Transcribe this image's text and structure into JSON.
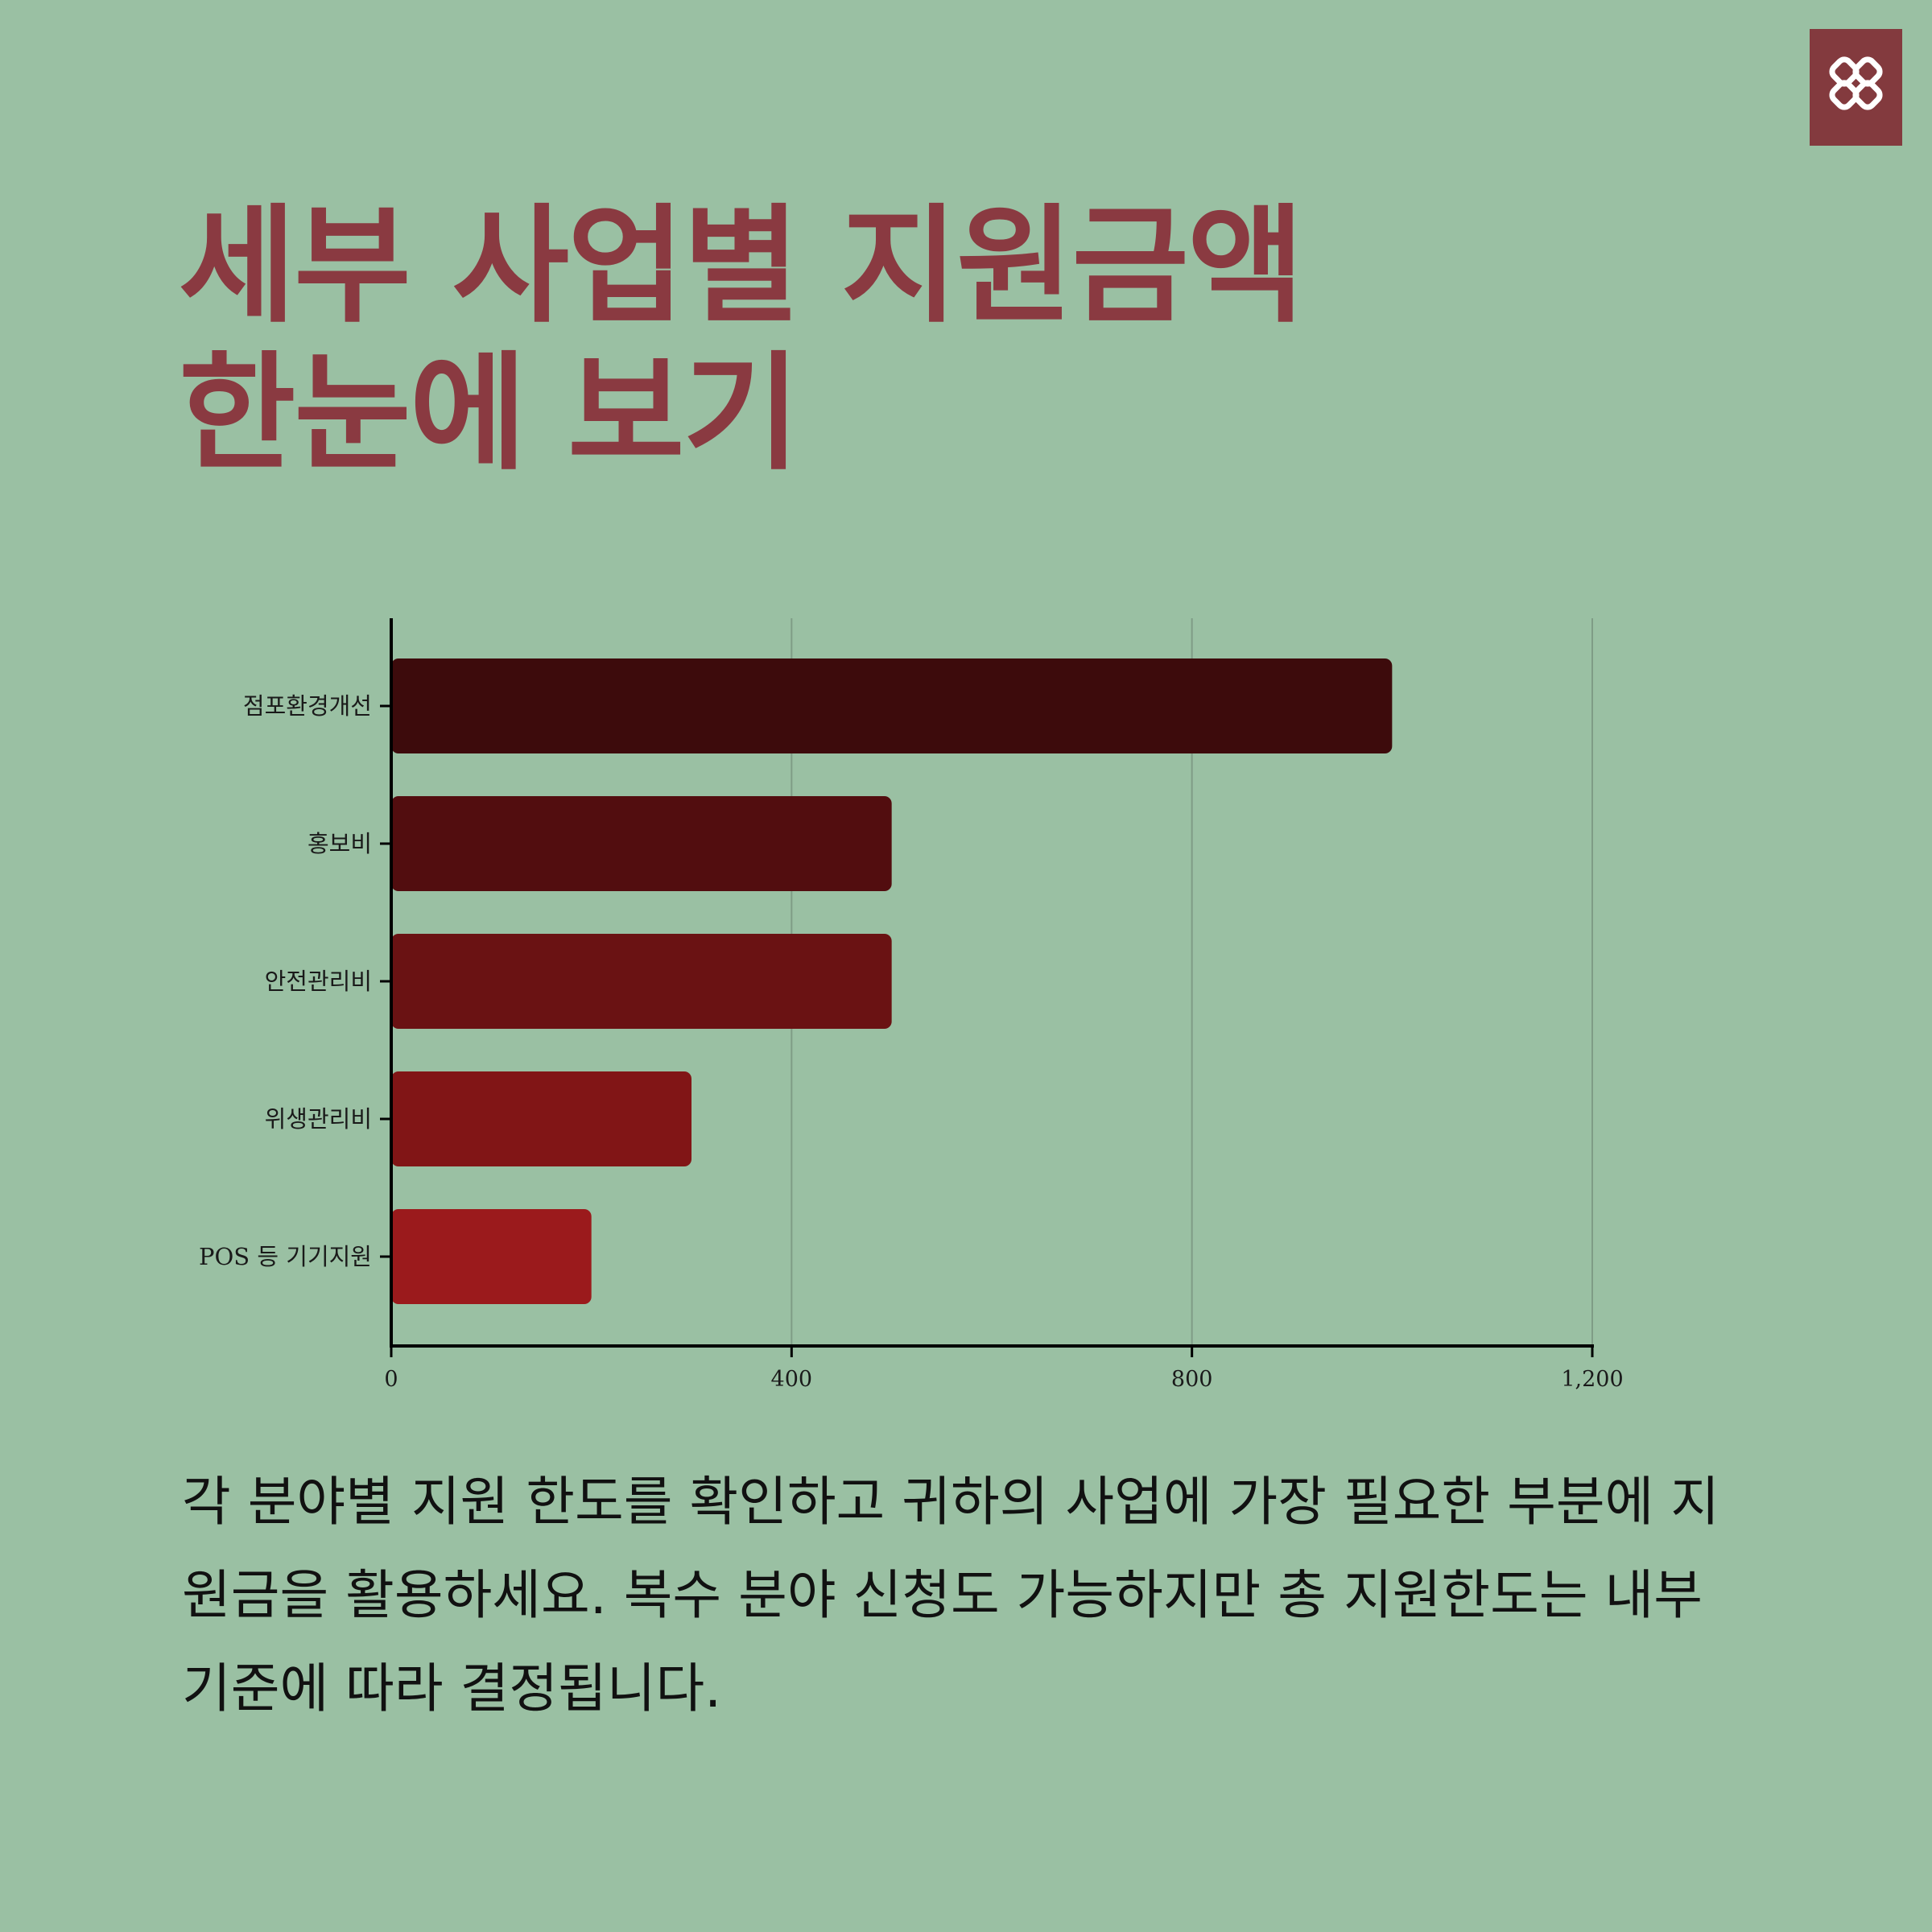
{
  "header": {
    "title_line1": "세부 사업별 지원금액",
    "title_line2": "한눈에 보기"
  },
  "colors": {
    "background": "#9ac0a3",
    "title": "#8a3a41",
    "logo_bg": "#833a3e",
    "bars": [
      "#3d0b0c",
      "#520d0f",
      "#6a1213",
      "#811516",
      "#9b1a1c"
    ]
  },
  "chart_data": {
    "type": "bar",
    "orientation": "horizontal",
    "categories": [
      "점포환경개선",
      "홍보비",
      "안전관리비",
      "위생관리비",
      "POS 등 기기지원"
    ],
    "values": [
      1000,
      500,
      500,
      300,
      200
    ],
    "xlim": [
      0,
      1200
    ],
    "xticks": [
      0,
      400,
      800,
      1200
    ],
    "xtick_labels": [
      "0",
      "400",
      "800",
      "1,200"
    ],
    "grid": "vertical",
    "title": "",
    "xlabel": "",
    "ylabel": ""
  },
  "description": "각 분야별 지원 한도를 확인하고 귀하의 사업에 가장 필요한 부분에 지원금을 활용하세요. 복수 분야 신청도 가능하지만 총 지원한도는 내부 기준에 따라 결정됩니다."
}
